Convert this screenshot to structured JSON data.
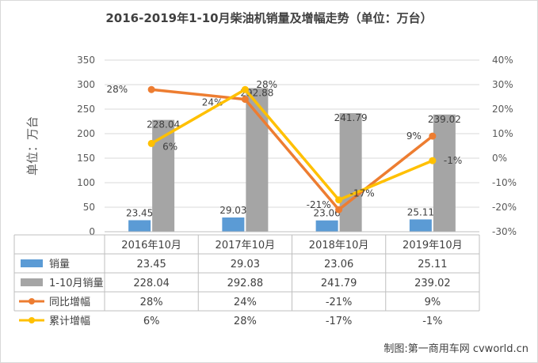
{
  "chart_data": {
    "type": "bar",
    "title": "2016-2019年1-10月柴油机销量及增幅走势（单位：万台）",
    "ylabel": "单位：万台",
    "categories": [
      "2016年10月",
      "2017年10月",
      "2018年10月",
      "2019年10月"
    ],
    "ylim": [
      0,
      350
    ],
    "yticks": [
      "0",
      "50",
      "100",
      "150",
      "200",
      "250",
      "300",
      "350"
    ],
    "y2lim": [
      -30,
      40
    ],
    "y2ticks": [
      "-30%",
      "-20%",
      "-10%",
      "0%",
      "10%",
      "20%",
      "30%",
      "40%"
    ],
    "grid": true,
    "legend": "table-below",
    "series": [
      {
        "name": "销量",
        "kind": "bar",
        "axis": "left",
        "color": "#5b9bd5",
        "values": [
          23.45,
          29.03,
          23.06,
          25.11
        ],
        "labels": [
          "23.45",
          "29.03",
          "23.06",
          "25.11"
        ]
      },
      {
        "name": "1-10月销量",
        "kind": "bar",
        "axis": "left",
        "color": "#a5a5a5",
        "values": [
          228.04,
          292.88,
          241.79,
          239.02
        ],
        "labels": [
          "228.04",
          "292.88",
          "241.79",
          "239.02"
        ]
      },
      {
        "name": "同比增幅",
        "kind": "line",
        "axis": "right",
        "color": "#ed7d31",
        "values": [
          28,
          24,
          -21,
          9
        ],
        "labels": [
          "28%",
          "24%",
          "-21%",
          "9%"
        ]
      },
      {
        "name": "累计增幅",
        "kind": "line",
        "axis": "right",
        "color": "#ffc000",
        "values": [
          6,
          28,
          -17,
          -1
        ],
        "labels": [
          "6%",
          "28%",
          "-17%",
          "-1%"
        ]
      }
    ]
  },
  "credit": "制图:第一商用车网 cvworld.cn"
}
